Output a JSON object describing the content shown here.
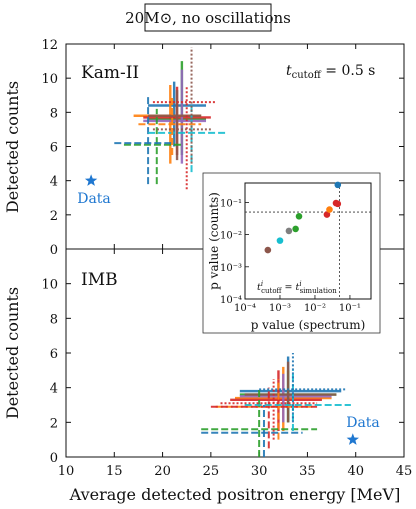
{
  "title": "20M⊙, no oscillations",
  "x_axis": {
    "label": "Average detected positron energy [MeV]",
    "range": [
      10,
      45
    ],
    "ticks": [
      "10",
      "15",
      "20",
      "25",
      "30",
      "35",
      "40",
      "45"
    ]
  },
  "panels": [
    {
      "name": "Kam-II",
      "annotation": "t_cutoff = 0.5 s",
      "ylabel": "Detected counts",
      "yrange": [
        0,
        12
      ],
      "yticks": [
        "0",
        "2",
        "4",
        "6",
        "8",
        "10",
        "12"
      ]
    },
    {
      "name": "IMB",
      "ylabel": "Detected counts",
      "yrange": [
        0,
        12
      ],
      "yticks": [
        "0",
        "2",
        "4",
        "6",
        "8",
        "10"
      ]
    }
  ],
  "data_label": "Data",
  "inset": {
    "xlabel": "p value (spectrum)",
    "ylabel": "p value (counts)",
    "annotation": "t_cutoff^i = t_simulation^i",
    "xticks": [
      "10⁻⁴",
      "10⁻³",
      "10⁻²",
      "10⁻¹"
    ],
    "yticks": [
      "10⁻¹",
      "10⁻²",
      "10⁻³",
      "10⁻⁴"
    ]
  },
  "chart_data": [
    {
      "type": "scatter",
      "panel": "Kam-II",
      "xlim": [
        10,
        45
      ],
      "ylim": [
        0,
        12
      ],
      "data_point": {
        "x": 12.6,
        "y": 4
      },
      "crosses": [
        {
          "color": "#1f77b4",
          "style": "solid",
          "x": 21.2,
          "xerr": [
            18.5,
            24.5
          ],
          "y": 8.4,
          "yerr": [
            6.0,
            9.8
          ]
        },
        {
          "color": "#ff7f0e",
          "style": "solid",
          "x": 20.8,
          "xerr": [
            17.0,
            24.0
          ],
          "y": 7.8,
          "yerr": [
            5.0,
            9.6
          ]
        },
        {
          "color": "#2ca02c",
          "style": "solid",
          "x": 22.0,
          "xerr": [
            18.5,
            24.5
          ],
          "y": 7.6,
          "yerr": [
            5.5,
            11.0
          ]
        },
        {
          "color": "#d62728",
          "style": "solid",
          "x": 21.5,
          "xerr": [
            18.0,
            25.0
          ],
          "y": 7.7,
          "yerr": [
            5.5,
            9.5
          ]
        },
        {
          "color": "#9467bd",
          "style": "solid",
          "x": 22.0,
          "xerr": [
            18.0,
            24.5
          ],
          "y": 7.5,
          "yerr": [
            5.0,
            10.5
          ]
        },
        {
          "color": "#8c564b",
          "style": "solid",
          "x": 21.5,
          "xerr": [
            18.5,
            24.0
          ],
          "y": 7.8,
          "yerr": [
            5.2,
            9.3
          ]
        },
        {
          "color": "#2ca02c",
          "style": "dashed",
          "x": 19.4,
          "xerr": [
            16.0,
            22.0
          ],
          "y": 6.1,
          "yerr": [
            3.8,
            8.2
          ]
        },
        {
          "color": "#1f77b4",
          "style": "dashed",
          "x": 18.5,
          "xerr": [
            15.0,
            21.0
          ],
          "y": 6.2,
          "yerr": [
            3.8,
            9.0
          ]
        },
        {
          "color": "#17becf",
          "style": "dashed",
          "x": 23.0,
          "xerr": [
            18.5,
            26.5
          ],
          "y": 6.8,
          "yerr": [
            4.5,
            8.5
          ]
        },
        {
          "color": "#ff7f0e",
          "style": "dashed",
          "x": 21.0,
          "xerr": [
            17.5,
            24.0
          ],
          "y": 7.3,
          "yerr": [
            5.5,
            9.0
          ]
        },
        {
          "color": "#d62728",
          "style": "dotted",
          "x": 22.5,
          "xerr": [
            19.0,
            25.5
          ],
          "y": 8.6,
          "yerr": [
            3.5,
            9.5
          ]
        },
        {
          "color": "#8c564b",
          "style": "dotted",
          "x": 23.0,
          "xerr": [
            19.0,
            25.0
          ],
          "y": 7.0,
          "yerr": [
            5.0,
            11.8
          ]
        }
      ]
    },
    {
      "type": "scatter",
      "panel": "IMB",
      "xlim": [
        10,
        45
      ],
      "ylim": [
        0,
        12
      ],
      "data_point": {
        "x": 39.7,
        "y": 1
      },
      "crosses": [
        {
          "color": "#1f77b4",
          "style": "solid",
          "x": 33.0,
          "xerr": [
            28.0,
            38.5
          ],
          "y": 3.8,
          "yerr": [
            2.0,
            5.8
          ]
        },
        {
          "color": "#ff7f0e",
          "style": "solid",
          "x": 32.5,
          "xerr": [
            27.5,
            37.5
          ],
          "y": 3.4,
          "yerr": [
            1.5,
            5.2
          ]
        },
        {
          "color": "#2ca02c",
          "style": "solid",
          "x": 33.0,
          "xerr": [
            28.0,
            38.0
          ],
          "y": 3.6,
          "yerr": [
            2.0,
            5.0
          ]
        },
        {
          "color": "#d62728",
          "style": "solid",
          "x": 32.0,
          "xerr": [
            27.0,
            36.5
          ],
          "y": 3.3,
          "yerr": [
            1.5,
            5.0
          ]
        },
        {
          "color": "#9467bd",
          "style": "solid",
          "x": 32.5,
          "xerr": [
            28.0,
            37.5
          ],
          "y": 3.5,
          "yerr": [
            2.0,
            4.8
          ]
        },
        {
          "color": "#8c564b",
          "style": "solid",
          "x": 33.0,
          "xerr": [
            28.5,
            38.0
          ],
          "y": 3.6,
          "yerr": [
            2.0,
            5.5
          ]
        },
        {
          "color": "#ff7f0e",
          "style": "dashed",
          "x": 32.0,
          "xerr": [
            25.5,
            35.5
          ],
          "y": 2.9,
          "yerr": [
            1.0,
            4.5
          ]
        },
        {
          "color": "#d62728",
          "style": "dashed",
          "x": 31.0,
          "xerr": [
            25.0,
            36.0
          ],
          "y": 2.9,
          "yerr": [
            0.5,
            4.0
          ]
        },
        {
          "color": "#2ca02c",
          "style": "dashed",
          "x": 30.0,
          "xerr": [
            24.0,
            36.0
          ],
          "y": 1.6,
          "yerr": [
            0.0,
            4.0
          ]
        },
        {
          "color": "#1f77b4",
          "style": "dashed",
          "x": 30.5,
          "xerr": [
            24.0,
            34.5
          ],
          "y": 1.4,
          "yerr": [
            0.0,
            3.0
          ]
        },
        {
          "color": "#17becf",
          "style": "dashed",
          "x": 33.5,
          "xerr": [
            28.5,
            39.5
          ],
          "y": 3.0,
          "yerr": [
            1.5,
            5.0
          ]
        },
        {
          "color": "#1f77b4",
          "style": "dotted",
          "x": 33.5,
          "xerr": [
            30.0,
            39.0
          ],
          "y": 3.9,
          "yerr": [
            2.0,
            6.0
          ]
        },
        {
          "color": "#d62728",
          "style": "dotted",
          "x": 31.5,
          "xerr": [
            26.0,
            36.0
          ],
          "y": 3.1,
          "yerr": [
            1.0,
            4.5
          ]
        }
      ]
    },
    {
      "type": "scatter",
      "panel": "inset",
      "xscale": "log",
      "yscale": "log",
      "xlim": [
        0.0001,
        0.4
      ],
      "ylim": [
        0.0001,
        0.4
      ],
      "threshold_x": 0.05,
      "threshold_y": 0.05,
      "points": [
        {
          "x": 0.00045,
          "y": 0.0033,
          "color": "#8c564b"
        },
        {
          "x": 0.001,
          "y": 0.0065,
          "color": "#17becf"
        },
        {
          "x": 0.0018,
          "y": 0.013,
          "color": "#7f7f7f"
        },
        {
          "x": 0.0028,
          "y": 0.015,
          "color": "#2ca02c"
        },
        {
          "x": 0.0035,
          "y": 0.037,
          "color": "#2ca02c"
        },
        {
          "x": 0.022,
          "y": 0.042,
          "color": "#d62728"
        },
        {
          "x": 0.026,
          "y": 0.06,
          "color": "#ff7f0e"
        },
        {
          "x": 0.04,
          "y": 0.095,
          "color": "#d62728"
        },
        {
          "x": 0.045,
          "y": 0.09,
          "color": "#d62728"
        },
        {
          "x": 0.045,
          "y": 0.35,
          "color": "#1f77b4"
        }
      ]
    }
  ]
}
